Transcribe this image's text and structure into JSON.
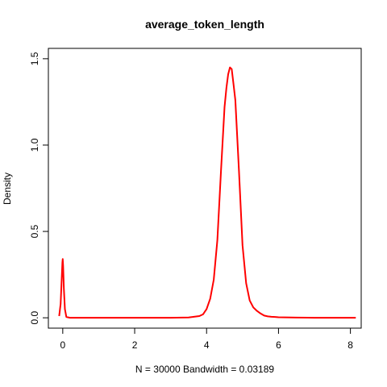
{
  "chart_data": {
    "type": "line",
    "title": "average_token_length",
    "xlabel": "N = 30000   Bandwidth = 0.03189",
    "ylabel": "Density",
    "xlim": [
      -0.4,
      8.3
    ],
    "ylim": [
      -0.06,
      1.56
    ],
    "xticks": [
      0,
      2,
      4,
      6,
      8
    ],
    "xtick_labels": [
      "0",
      "2",
      "4",
      "6",
      "8"
    ],
    "yticks": [
      0.0,
      0.5,
      1.0,
      1.5
    ],
    "ytick_labels": [
      "0.0",
      "0.5",
      "1.0",
      "1.5"
    ],
    "grid": false,
    "series": [
      {
        "color": "#ff0000",
        "x": [
          -0.1,
          -0.06,
          -0.03,
          -0.01,
          0.0,
          0.01,
          0.03,
          0.06,
          0.1,
          0.2,
          1.0,
          2.0,
          3.0,
          3.5,
          3.8,
          3.9,
          4.0,
          4.1,
          4.2,
          4.3,
          4.4,
          4.5,
          4.55,
          4.6,
          4.65,
          4.7,
          4.75,
          4.8,
          4.9,
          5.0,
          5.1,
          5.2,
          5.3,
          5.4,
          5.5,
          5.6,
          5.7,
          5.8,
          5.9,
          6.0,
          6.5,
          7.0,
          7.5,
          8.0,
          8.15
        ],
        "y": [
          0.01,
          0.08,
          0.22,
          0.32,
          0.34,
          0.3,
          0.17,
          0.05,
          0.005,
          0.0,
          0.0,
          0.0,
          0.0,
          0.002,
          0.01,
          0.02,
          0.05,
          0.11,
          0.22,
          0.45,
          0.85,
          1.22,
          1.33,
          1.41,
          1.45,
          1.44,
          1.35,
          1.26,
          0.85,
          0.42,
          0.2,
          0.1,
          0.06,
          0.04,
          0.025,
          0.013,
          0.008,
          0.006,
          0.005,
          0.003,
          0.001,
          0.0,
          0.0,
          0.0,
          0.0
        ]
      }
    ]
  }
}
